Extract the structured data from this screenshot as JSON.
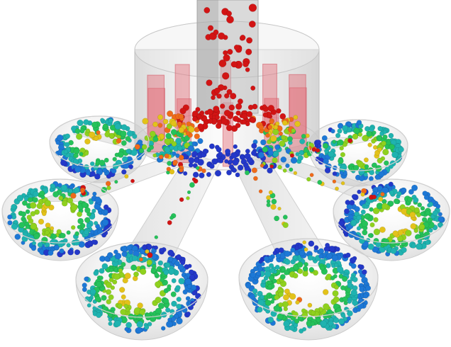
{
  "image": {
    "kind": "3d-simulation-render",
    "background": "#ffffff"
  },
  "scene": {
    "objects": [
      {
        "name": "feed-chute",
        "color": "#9a9a9a"
      },
      {
        "name": "distributor-drum",
        "color": "#bdbdbd"
      },
      {
        "name": "divider-vanes",
        "color": "#e88a92"
      },
      {
        "name": "discharge-chutes",
        "count": 6,
        "color": "#cfcfcf"
      },
      {
        "name": "collection-bowls",
        "count": 6,
        "color": "#d6d6d6"
      }
    ],
    "particles": {
      "colormap": "jet",
      "colors": [
        "#d21414",
        "#ef6a1a",
        "#e3c21a",
        "#8fd11e",
        "#25c25a",
        "#1fb3b0",
        "#1d78d6",
        "#2438c9"
      ]
    }
  }
}
